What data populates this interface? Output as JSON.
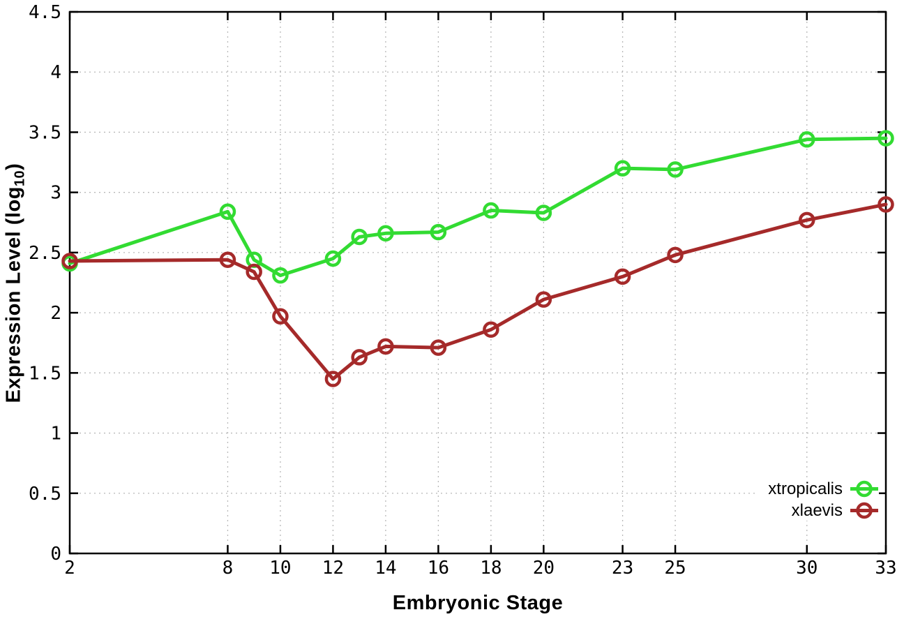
{
  "chart_data": {
    "type": "line",
    "xlabel": "Embryonic Stage",
    "ylabel": "Expression Level (log10)",
    "ylabel_parts": {
      "prefix": "Expression Level (log",
      "sub": "10",
      "suffix": ")"
    },
    "xlim": [
      2,
      33
    ],
    "ylim": [
      0,
      4.5
    ],
    "grid": true,
    "legend_position": "inside-bottom-right",
    "x": [
      2,
      8,
      9,
      10,
      12,
      13,
      14,
      16,
      18,
      20,
      23,
      25,
      30,
      33
    ],
    "x_ticks": [
      2,
      8,
      10,
      12,
      14,
      16,
      18,
      20,
      23,
      25,
      30,
      33
    ],
    "x_tick_labels": [
      "2",
      "8",
      "10",
      "12",
      "14",
      "16",
      "18",
      "20",
      "23",
      "25",
      "30",
      "33"
    ],
    "y_ticks": [
      0,
      0.5,
      1,
      1.5,
      2,
      2.5,
      3,
      3.5,
      4,
      4.5
    ],
    "y_tick_labels": [
      "0",
      "0.5",
      "1",
      "1.5",
      "2",
      "2.5",
      "3",
      "3.5",
      "4",
      "4.5"
    ],
    "series": [
      {
        "name": "xtropicalis",
        "color": "#32db32",
        "values": [
          2.41,
          2.84,
          2.44,
          2.31,
          2.45,
          2.63,
          2.66,
          2.67,
          2.85,
          2.83,
          3.2,
          3.19,
          3.44,
          3.45
        ]
      },
      {
        "name": "xlaevis",
        "color": "#a52a2a",
        "values": [
          2.43,
          2.44,
          2.34,
          1.97,
          1.45,
          1.63,
          1.72,
          1.71,
          1.86,
          2.11,
          2.3,
          2.48,
          2.77,
          2.9
        ]
      }
    ]
  },
  "colors": {
    "grid": "#b8b8b8",
    "axis": "#000000",
    "text": "#000000",
    "background": "#ffffff"
  }
}
